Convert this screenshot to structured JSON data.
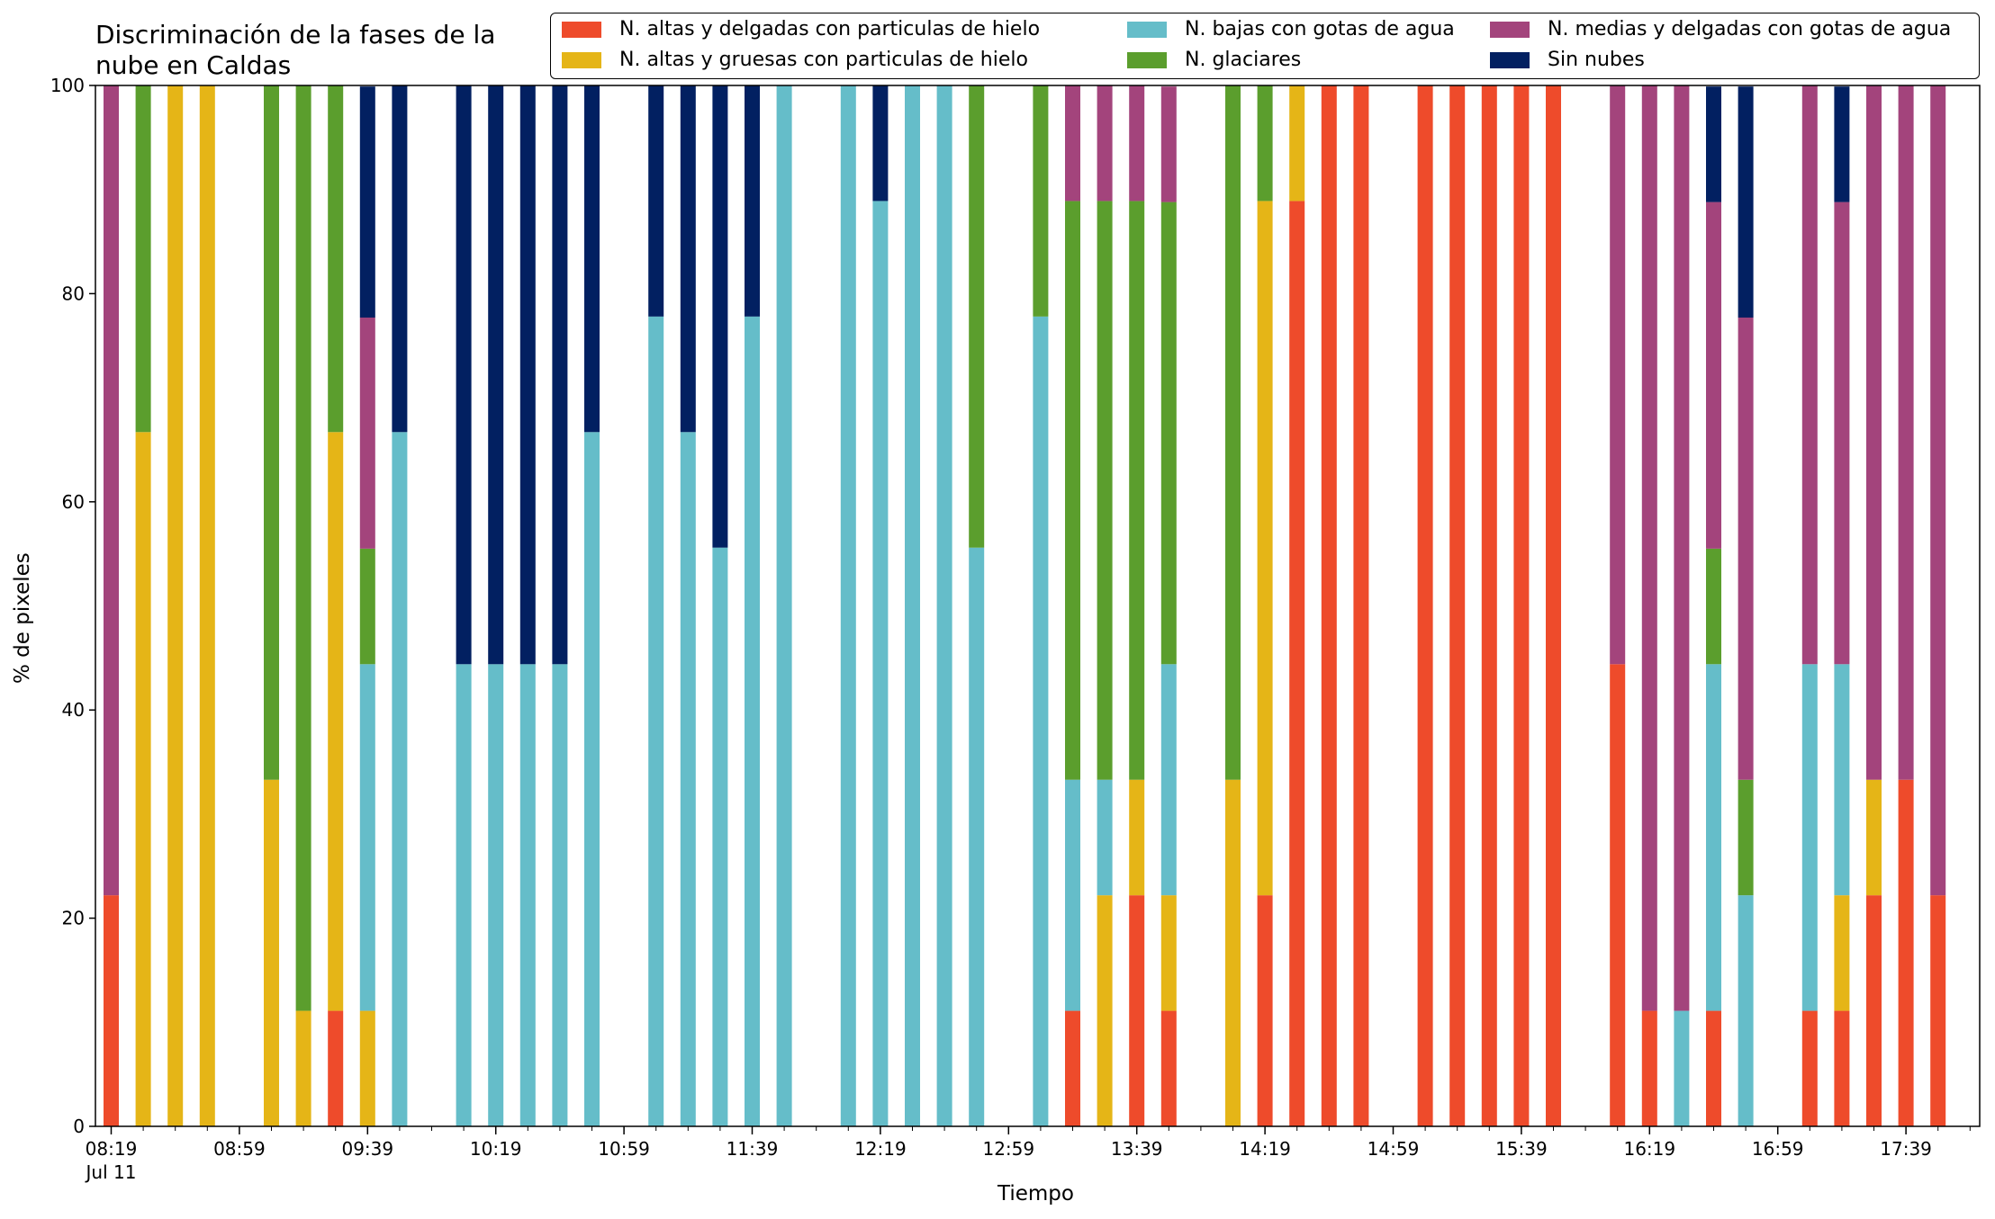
{
  "chart_data": {
    "type": "bar",
    "stacked": true,
    "title": "Discriminación de la fases de la\nnube en Caldas",
    "xlabel": "Tiempo",
    "ylabel": "% de pixeles",
    "ylim": [
      0,
      100
    ],
    "yticks": [
      "0",
      "20",
      "40",
      "60",
      "80",
      "100"
    ],
    "xticks": [
      "08:19",
      "08:59",
      "09:39",
      "10:19",
      "10:59",
      "11:39",
      "12:19",
      "12:59",
      "13:39",
      "14:19",
      "14:59",
      "15:39",
      "16:19",
      "16:59",
      "17:39"
    ],
    "xtick_sublabel": "Jul 11",
    "x_start": "08:19",
    "x_interval_minutes": 10,
    "legend_position": "top-right",
    "legend_columns": [
      [
        "N. altas y delgadas con particulas de hielo",
        "N. altas y gruesas con particulas de hielo"
      ],
      [
        "N. bajas con gotas de agua",
        "N. glaciares"
      ],
      [
        "N. medias y delgadas con gotas de agua",
        "Sin nubes"
      ]
    ],
    "categories": [
      "08:19",
      "08:29",
      "08:39",
      "08:49",
      "08:59",
      "09:09",
      "09:19",
      "09:29",
      "09:39",
      "09:49",
      "09:59",
      "10:09",
      "10:19",
      "10:29",
      "10:39",
      "10:49",
      "10:59",
      "11:09",
      "11:19",
      "11:29",
      "11:39",
      "11:49",
      "11:59",
      "12:09",
      "12:19",
      "12:29",
      "12:39",
      "12:49",
      "12:59",
      "13:09",
      "13:19",
      "13:29",
      "13:39",
      "13:49",
      "13:59",
      "14:09",
      "14:19",
      "14:29",
      "14:39",
      "14:49",
      "14:59",
      "15:09",
      "15:19",
      "15:29",
      "15:39",
      "15:49",
      "15:59",
      "16:09",
      "16:19",
      "16:29",
      "16:39",
      "16:49",
      "16:59",
      "17:09",
      "17:19",
      "17:29",
      "17:39",
      "17:49"
    ],
    "series": [
      {
        "name": "N. altas y delgadas con particulas de hielo",
        "color": "#ee4b2b",
        "values": [
          22.2,
          0,
          0,
          0,
          null,
          0,
          0,
          11.1,
          0,
          0,
          null,
          0,
          0,
          0,
          0,
          0,
          null,
          0,
          0,
          0,
          0,
          0,
          null,
          0,
          0,
          0,
          0,
          0,
          null,
          0,
          11.1,
          0,
          22.2,
          11.1,
          null,
          0,
          22.2,
          88.9,
          100,
          100,
          null,
          100,
          100,
          100,
          100,
          100,
          null,
          44.4,
          11.1,
          0,
          11.1,
          0,
          null,
          11.1,
          11.1,
          22.2,
          33.3,
          22.2
        ]
      },
      {
        "name": "N. altas y gruesas con particulas de hielo",
        "color": "#e5b517",
        "values": [
          0,
          66.7,
          100,
          100,
          null,
          33.3,
          11.1,
          55.6,
          11.1,
          0,
          null,
          0,
          0,
          0,
          0,
          0,
          null,
          0,
          0,
          0,
          0,
          0,
          null,
          0,
          0,
          0,
          0,
          0,
          null,
          0,
          0,
          22.2,
          11.1,
          11.1,
          null,
          33.3,
          66.7,
          11.1,
          0,
          0,
          null,
          0,
          0,
          0,
          0,
          0,
          null,
          0,
          0,
          0,
          0,
          0,
          null,
          0,
          11.1,
          11.1,
          0,
          0
        ]
      },
      {
        "name": "N. bajas con gotas de agua",
        "color": "#65bdc9",
        "values": [
          0,
          0,
          0,
          0,
          null,
          0,
          0,
          0,
          33.3,
          66.7,
          null,
          44.4,
          44.4,
          44.4,
          44.4,
          66.7,
          null,
          77.8,
          66.7,
          55.6,
          77.8,
          100,
          null,
          100,
          88.9,
          100,
          100,
          55.6,
          null,
          77.8,
          22.2,
          11.1,
          0,
          22.2,
          null,
          0,
          0,
          0,
          0,
          0,
          null,
          0,
          0,
          0,
          0,
          0,
          null,
          0,
          0,
          11.1,
          33.3,
          22.2,
          null,
          33.3,
          22.2,
          0,
          0,
          0
        ]
      },
      {
        "name": "N. glaciares",
        "color": "#5b9e2d",
        "values": [
          0,
          33.3,
          0,
          0,
          null,
          66.7,
          88.9,
          33.3,
          11.1,
          0,
          null,
          0,
          0,
          0,
          0,
          0,
          null,
          0,
          0,
          0,
          0,
          0,
          null,
          0,
          0,
          0,
          0,
          44.4,
          null,
          22.2,
          55.6,
          55.6,
          55.6,
          44.4,
          null,
          66.7,
          11.1,
          0,
          0,
          0,
          null,
          0,
          0,
          0,
          0,
          0,
          null,
          0,
          0,
          0,
          11.1,
          11.1,
          null,
          0,
          0,
          0,
          0,
          0
        ]
      },
      {
        "name": "N. medias y delgadas con gotas de agua",
        "color": "#a3447c",
        "values": [
          77.8,
          0,
          0,
          0,
          null,
          0,
          0,
          0,
          22.2,
          0,
          null,
          0,
          0,
          0,
          0,
          0,
          null,
          0,
          0,
          0,
          0,
          0,
          null,
          0,
          0,
          0,
          0,
          0,
          null,
          0,
          11.1,
          11.1,
          11.1,
          11.1,
          null,
          0,
          0,
          0,
          0,
          0,
          null,
          0,
          0,
          0,
          0,
          0,
          null,
          55.6,
          88.9,
          88.9,
          33.3,
          44.4,
          null,
          55.6,
          44.4,
          66.7,
          66.7,
          77.8
        ]
      },
      {
        "name": "Sin nubes",
        "color": "#022061",
        "values": [
          0,
          0,
          0,
          0,
          null,
          0,
          0,
          0,
          22.2,
          33.3,
          null,
          55.6,
          55.6,
          55.6,
          55.6,
          33.3,
          null,
          22.2,
          33.3,
          44.4,
          22.2,
          0,
          null,
          0,
          11.1,
          0,
          0,
          0,
          null,
          0,
          0,
          0,
          0,
          0,
          null,
          0,
          0,
          0,
          0,
          0,
          null,
          0,
          0,
          0,
          0,
          0,
          null,
          0,
          0,
          0,
          11.1,
          22.2,
          null,
          0,
          11.1,
          0,
          0,
          0
        ]
      }
    ]
  }
}
